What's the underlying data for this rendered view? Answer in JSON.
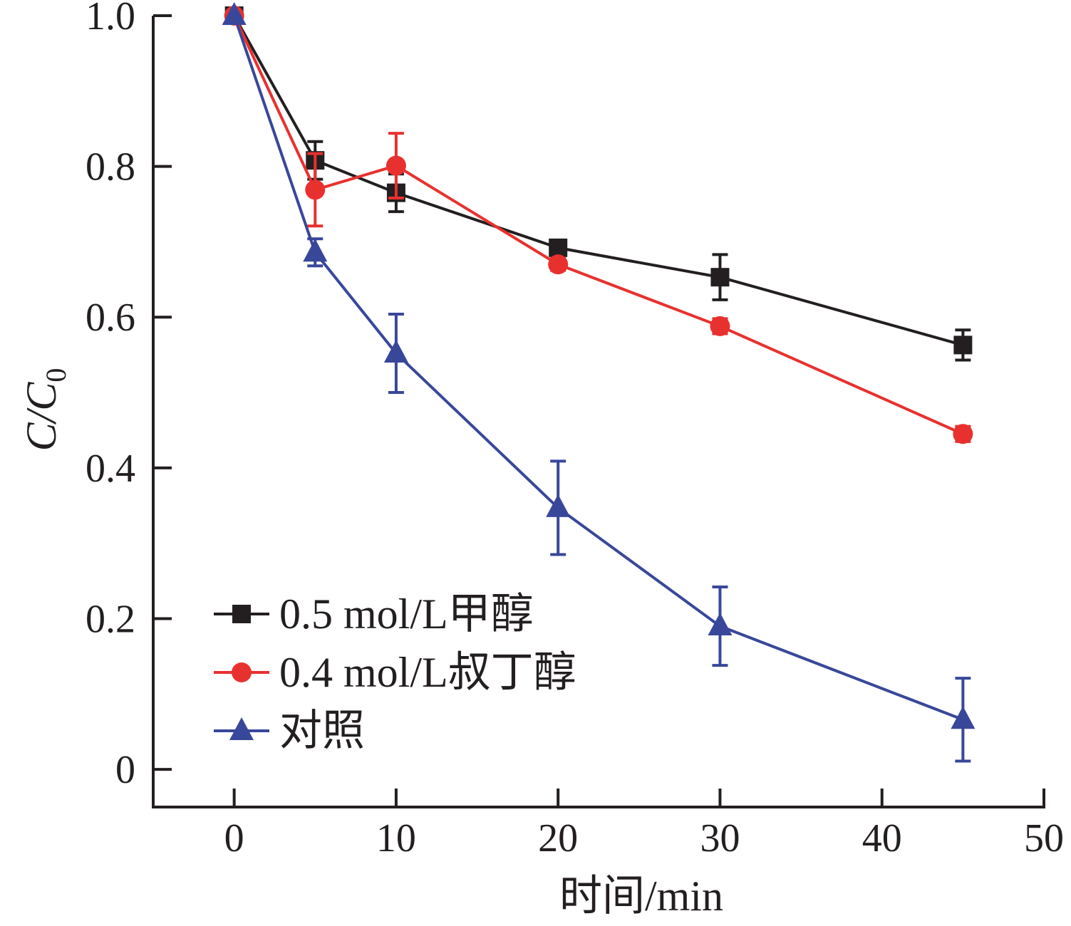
{
  "chart_data": {
    "type": "line",
    "xlabel": "时间/min",
    "ylabel_main": "C/C",
    "ylabel_sub": "0",
    "xlim": [
      -5,
      50
    ],
    "ylim": [
      -0.05,
      1.0
    ],
    "x_ticks": [
      0,
      10,
      20,
      30,
      40,
      50
    ],
    "x_tick_labels": [
      "0",
      "10",
      "20",
      "30",
      "40",
      "50"
    ],
    "y_ticks": [
      0,
      0.2,
      0.4,
      0.6,
      0.8,
      1.0
    ],
    "y_tick_labels": [
      "0",
      "0.2",
      "0.4",
      "0.6",
      "0.8",
      "1.0"
    ],
    "grid": false,
    "legend_position": "bottom-left",
    "x": [
      0,
      5,
      10,
      20,
      30,
      45
    ],
    "series": [
      {
        "name": "0.5 mol/L甲醇",
        "color": "#231f20",
        "marker": "square",
        "values": [
          1.0,
          0.808,
          0.765,
          0.692,
          0.653,
          0.563
        ],
        "errors": [
          0,
          0.025,
          0.025,
          0.008,
          0.03,
          0.02
        ]
      },
      {
        "name": "0.4 mol/L叔丁醇",
        "color": "#e8312f",
        "marker": "circle",
        "values": [
          1.0,
          0.769,
          0.801,
          0.67,
          0.588,
          0.445
        ],
        "errors": [
          0,
          0.048,
          0.043,
          0.008,
          0.01,
          0.01
        ]
      },
      {
        "name": "对照",
        "color": "#39479a",
        "marker": "triangle",
        "values": [
          1.0,
          0.686,
          0.552,
          0.347,
          0.19,
          0.066
        ],
        "errors": [
          0,
          0.018,
          0.052,
          0.062,
          0.052,
          0.055
        ]
      }
    ]
  }
}
